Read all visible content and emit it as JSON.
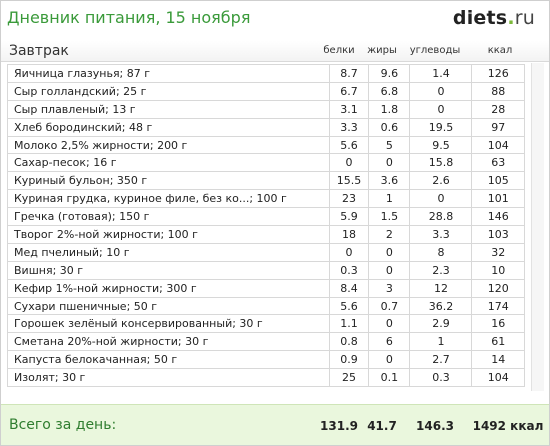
{
  "header": {
    "title": "Дневник питания, 15 ноября",
    "logo_main": "diets",
    "logo_dot": ".",
    "logo_tld": "ru"
  },
  "table": {
    "meal_label": "Завтрак",
    "columns": {
      "protein": "белки",
      "fat": "жиры",
      "carbs": "углеводы",
      "kcal": "ккал"
    },
    "rows": [
      {
        "name": "Яичница глазунья; 87 г",
        "protein": "8.7",
        "fat": "9.6",
        "carbs": "1.4",
        "kcal": "126"
      },
      {
        "name": "Сыр голландский; 25 г",
        "protein": "6.7",
        "fat": "6.8",
        "carbs": "0",
        "kcal": "88"
      },
      {
        "name": "Сыр плавленый; 13 г",
        "protein": "3.1",
        "fat": "1.8",
        "carbs": "0",
        "kcal": "28"
      },
      {
        "name": "Хлеб бородинский; 48 г",
        "protein": "3.3",
        "fat": "0.6",
        "carbs": "19.5",
        "kcal": "97"
      },
      {
        "name": "Молоко 2,5% жирности; 200 г",
        "protein": "5.6",
        "fat": "5",
        "carbs": "9.5",
        "kcal": "104"
      },
      {
        "name": "Сахар-песок; 16 г",
        "protein": "0",
        "fat": "0",
        "carbs": "15.8",
        "kcal": "63"
      },
      {
        "name": "Куриный бульон; 350 г",
        "protein": "15.5",
        "fat": "3.6",
        "carbs": "2.6",
        "kcal": "105"
      },
      {
        "name": "Куриная грудка, куриное филе, без ко...; 100 г",
        "protein": "23",
        "fat": "1",
        "carbs": "0",
        "kcal": "101"
      },
      {
        "name": "Гречка (готовая); 150 г",
        "protein": "5.9",
        "fat": "1.5",
        "carbs": "28.8",
        "kcal": "146"
      },
      {
        "name": "Творог 2%-ной жирности; 100 г",
        "protein": "18",
        "fat": "2",
        "carbs": "3.3",
        "kcal": "103"
      },
      {
        "name": "Мед пчелиный; 10 г",
        "protein": "0",
        "fat": "0",
        "carbs": "8",
        "kcal": "32"
      },
      {
        "name": "Вишня; 30 г",
        "protein": "0.3",
        "fat": "0",
        "carbs": "2.3",
        "kcal": "10"
      },
      {
        "name": "Кефир 1%-ной жирности; 300 г",
        "protein": "8.4",
        "fat": "3",
        "carbs": "12",
        "kcal": "120"
      },
      {
        "name": "Сухари пшеничные; 50 г",
        "protein": "5.6",
        "fat": "0.7",
        "carbs": "36.2",
        "kcal": "174"
      },
      {
        "name": "Горошек зелёный консервированный; 30 г",
        "protein": "1.1",
        "fat": "0",
        "carbs": "2.9",
        "kcal": "16"
      },
      {
        "name": "Сметана 20%-ной жирности; 30 г",
        "protein": "0.8",
        "fat": "6",
        "carbs": "1",
        "kcal": "61"
      },
      {
        "name": "Капуста белокачанная; 50 г",
        "protein": "0.9",
        "fat": "0",
        "carbs": "2.7",
        "kcal": "14"
      },
      {
        "name": "Изолят; 30 г",
        "protein": "25",
        "fat": "0.1",
        "carbs": "0.3",
        "kcal": "104"
      }
    ]
  },
  "footer": {
    "label": "Всего за день:",
    "protein": "131.9",
    "fat": "41.7",
    "carbs": "146.3",
    "kcal": "1492 ккал"
  }
}
